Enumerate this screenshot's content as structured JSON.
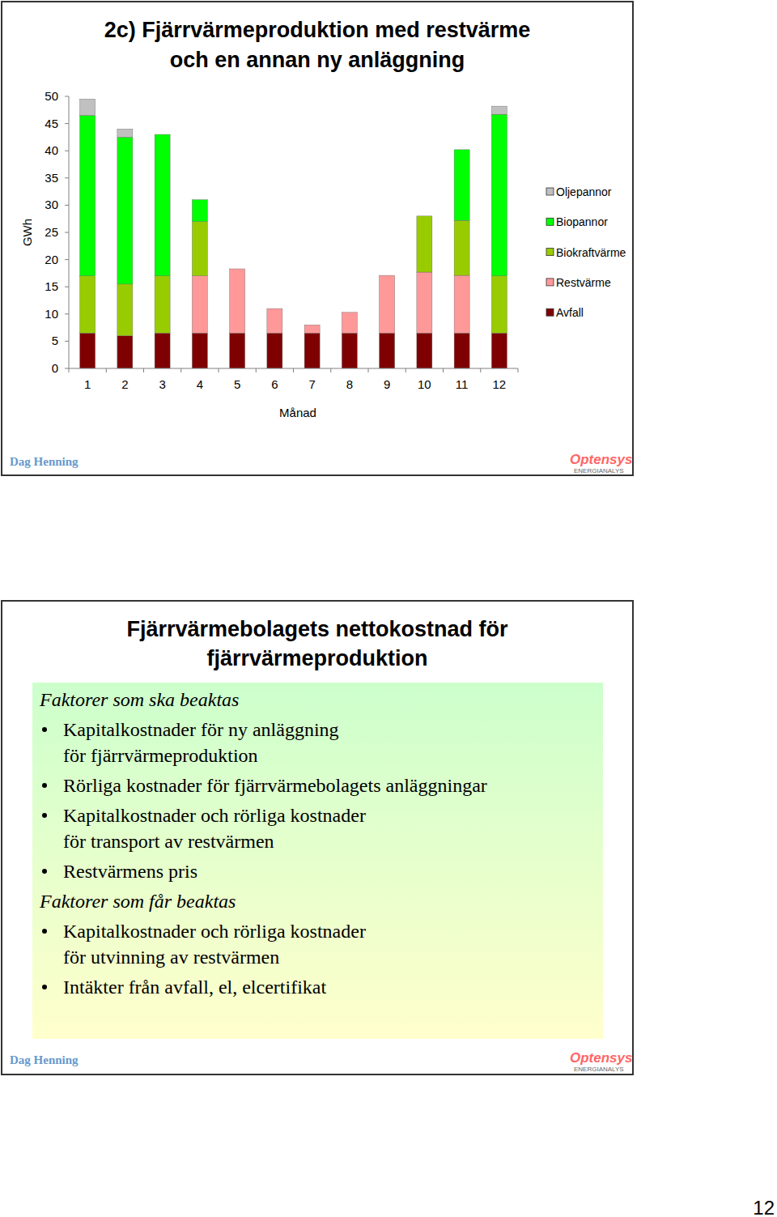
{
  "chart_data": {
    "type": "bar",
    "title": [
      "2c) Fjärrvärmeproduktion med restvärme",
      "och en annan ny anläggning"
    ],
    "x_label": "Månad",
    "y_label": "GWh",
    "categories": [
      "1",
      "2",
      "3",
      "4",
      "5",
      "6",
      "7",
      "8",
      "9",
      "10",
      "11",
      "12"
    ],
    "series": [
      {
        "name": "Avfall",
        "color": "#7f0000",
        "values": [
          6.5,
          6,
          6.5,
          6.5,
          6.5,
          6.5,
          6.5,
          6.5,
          6.5,
          6.5,
          6.5,
          6.5
        ]
      },
      {
        "name": "Restvärme",
        "color": "#ff9999",
        "values": [
          0,
          0,
          0,
          10.5,
          11.8,
          4.5,
          1.5,
          3.8,
          10.6,
          11.2,
          10.6,
          0
        ]
      },
      {
        "name": "Biokraftvärme",
        "color": "#99cc00",
        "values": [
          10.5,
          9.5,
          10.5,
          10,
          0,
          0,
          0,
          0,
          0,
          10.3,
          10.1,
          10.5
        ]
      },
      {
        "name": "Biopannor",
        "color": "#00ff00",
        "values": [
          29.5,
          27,
          26,
          4,
          0,
          0,
          0,
          0,
          0,
          0,
          13,
          29.7
        ]
      },
      {
        "name": "Oljepannor",
        "color": "#c0c0c0",
        "values": [
          3,
          1.5,
          0,
          0,
          0,
          0,
          0,
          0,
          0,
          0,
          0,
          1.5
        ]
      }
    ],
    "stacked": true,
    "grid": false,
    "legend": "right",
    "ylim": [
      0,
      50
    ],
    "yticks": [
      0,
      5,
      10,
      15,
      20,
      25,
      30,
      35,
      40,
      45,
      50
    ]
  },
  "footer": {
    "author": "Dag Henning",
    "logo": "Optensys",
    "logo_sub": "ENERGIANALYS"
  },
  "slide2": {
    "title": [
      "Fjärrvärmebolagets nettokostnad för",
      "fjärrvärmeproduktion"
    ],
    "sections": [
      {
        "heading": "Faktorer som ska beaktas",
        "items": [
          [
            "Kapitalkostnader för ny anläggning",
            "för fjärrvärmeproduktion"
          ],
          [
            "Rörliga kostnader för fjärrvärmebolagets anläggningar"
          ],
          [
            "Kapitalkostnader och rörliga kostnader",
            "för transport av restvärmen"
          ],
          [
            "Restvärmens pris"
          ]
        ]
      },
      {
        "heading": "Faktorer som får beaktas",
        "items": [
          [
            "Kapitalkostnader och rörliga kostnader",
            "för utvinning av restvärmen"
          ],
          [
            "Intäkter från avfall, el, elcertifikat"
          ]
        ]
      }
    ]
  },
  "page_number": "12"
}
